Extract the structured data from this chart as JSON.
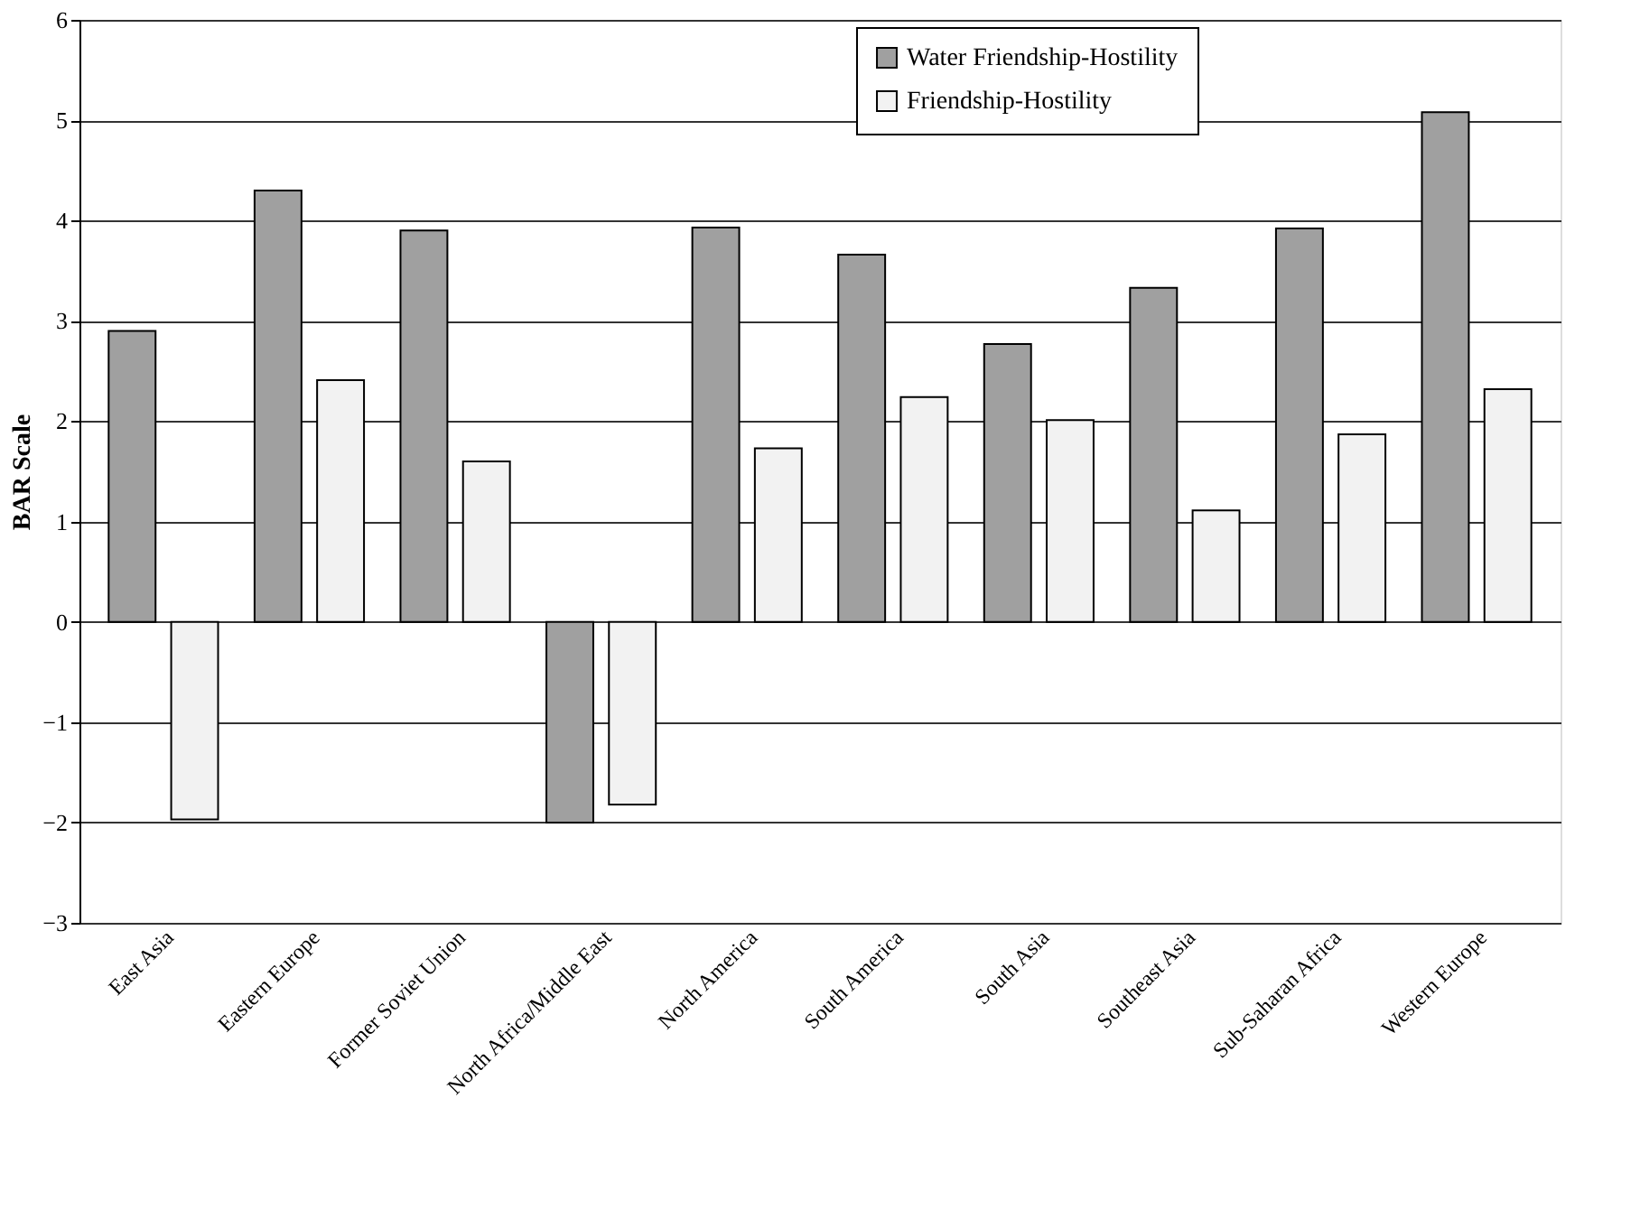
{
  "chart_data": {
    "type": "bar",
    "ylabel": "BAR Scale",
    "categories": [
      "East Asia",
      "Eastern Europe",
      "Former Soviet Union",
      "North Africa/Middle East",
      "North America",
      "South America",
      "South Asia",
      "Southeast Asia",
      "Sub-Saharan Africa",
      "Western Europe"
    ],
    "series": [
      {
        "name": "Water Friendship-Hostility",
        "color": "#a0a0a0",
        "values": [
          2.9,
          4.3,
          3.9,
          -2.0,
          3.93,
          3.66,
          2.77,
          3.33,
          3.92,
          5.08
        ]
      },
      {
        "name": "Friendship-Hostility",
        "color": "#f2f2f2",
        "values": [
          -1.97,
          2.41,
          1.6,
          -1.82,
          1.73,
          2.24,
          2.01,
          1.11,
          1.87,
          2.32
        ]
      }
    ],
    "ylim": [
      -3,
      6
    ],
    "yticks": [
      -3,
      -2,
      -1,
      0,
      1,
      2,
      3,
      4,
      5,
      6
    ],
    "grid": "y",
    "legend": "top right"
  }
}
